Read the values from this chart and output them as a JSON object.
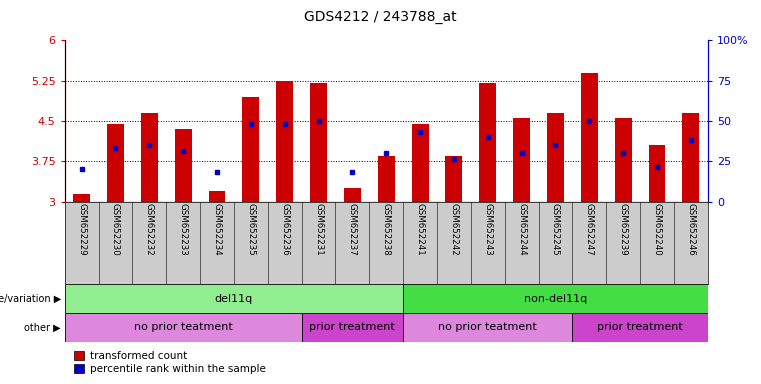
{
  "title": "GDS4212 / 243788_at",
  "samples": [
    "GSM652229",
    "GSM652230",
    "GSM652232",
    "GSM652233",
    "GSM652234",
    "GSM652235",
    "GSM652236",
    "GSM652231",
    "GSM652237",
    "GSM652238",
    "GSM652241",
    "GSM652242",
    "GSM652243",
    "GSM652244",
    "GSM652245",
    "GSM652247",
    "GSM652239",
    "GSM652240",
    "GSM652246"
  ],
  "bar_values": [
    3.15,
    4.45,
    4.65,
    4.35,
    3.2,
    4.95,
    5.25,
    5.2,
    3.25,
    3.85,
    4.45,
    3.85,
    5.2,
    4.55,
    4.65,
    5.4,
    4.55,
    4.05,
    4.65
  ],
  "percentile_values": [
    3.6,
    4.0,
    4.05,
    3.95,
    3.55,
    4.45,
    4.45,
    4.5,
    3.55,
    3.9,
    4.3,
    3.8,
    4.2,
    3.9,
    4.05,
    4.5,
    3.9,
    3.65,
    4.15
  ],
  "ylim": [
    3.0,
    6.0
  ],
  "yticks": [
    3.0,
    3.75,
    4.5,
    5.25,
    6.0
  ],
  "yticklabels": [
    "3",
    "3.75",
    "4.5",
    "5.25",
    "6"
  ],
  "right_yticks": [
    0,
    25,
    50,
    75,
    100
  ],
  "bar_color": "#cc0000",
  "percentile_color": "#0000cc",
  "bar_width": 0.5,
  "genotype_groups": [
    {
      "label": "del11q",
      "start": 0,
      "end": 10,
      "color": "#90ee90"
    },
    {
      "label": "non-del11q",
      "start": 10,
      "end": 19,
      "color": "#44dd44"
    }
  ],
  "treatment_groups": [
    {
      "label": "no prior teatment",
      "start": 0,
      "end": 7,
      "color": "#dd88dd"
    },
    {
      "label": "prior treatment",
      "start": 7,
      "end": 10,
      "color": "#cc44cc"
    },
    {
      "label": "no prior teatment",
      "start": 10,
      "end": 15,
      "color": "#dd88dd"
    },
    {
      "label": "prior treatment",
      "start": 15,
      "end": 19,
      "color": "#cc44cc"
    }
  ],
  "legend_items": [
    {
      "label": "transformed count",
      "color": "#cc0000"
    },
    {
      "label": "percentile rank within the sample",
      "color": "#0000cc"
    }
  ],
  "genotype_label": "genotype/variation",
  "other_label": "other"
}
